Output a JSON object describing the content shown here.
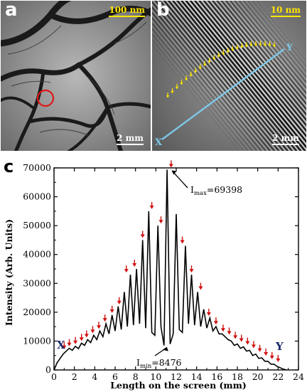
{
  "panels": {
    "a": {
      "letter": "a",
      "scale_top": "100 nm",
      "scale_bottom": "2 mm"
    },
    "b": {
      "letter": "b",
      "scale_top": "10 nm",
      "scale_bottom": "2 mm",
      "line_start": "X",
      "line_end": "Y"
    },
    "c": {
      "letter": "c"
    }
  },
  "colors": {
    "yellow_scale": "#ffe600",
    "marker_red": "#d01010",
    "line_blue": "#7ec8e8",
    "circle_red": "#e01818"
  },
  "chart_data": {
    "type": "line",
    "title": "",
    "xlabel": "Length on the screen (mm)",
    "ylabel": "Intensity (Arb. Units)",
    "xlim": [
      0,
      24
    ],
    "ylim": [
      0,
      70000
    ],
    "xticks": [
      0,
      2,
      4,
      6,
      8,
      10,
      12,
      14,
      16,
      18,
      20,
      22,
      24
    ],
    "yticks": [
      0,
      10000,
      20000,
      30000,
      40000,
      50000,
      60000,
      70000
    ],
    "series": [
      {
        "x": [
          0.0,
          0.3,
          0.6,
          0.9,
          1.2,
          1.5,
          1.8,
          2.1,
          2.4,
          2.7,
          3.0,
          3.3,
          3.6,
          3.9,
          4.2,
          4.5,
          4.8,
          5.1,
          5.4,
          5.7,
          6.0,
          6.3,
          6.6,
          6.9,
          7.2,
          7.5,
          7.8,
          8.1,
          8.4,
          8.7,
          9.0,
          9.3,
          9.6,
          9.9,
          10.2,
          10.5,
          10.8,
          11.1,
          11.4,
          11.7,
          12.0,
          12.3,
          12.6,
          12.9,
          13.2,
          13.5,
          13.8,
          14.1,
          14.4,
          14.7,
          15.0,
          15.3,
          15.6,
          15.9,
          16.2,
          16.5,
          16.8,
          17.1,
          17.4,
          17.7,
          18.0,
          18.3,
          18.6,
          18.9,
          19.2,
          19.5,
          19.8,
          20.1,
          20.4,
          20.7,
          21.0,
          21.3,
          21.6,
          21.9,
          22.2,
          22.5,
          22.8
        ],
        "y": [
          0,
          2500,
          4000,
          5500,
          6500,
          7500,
          6800,
          8200,
          7400,
          9300,
          8500,
          10500,
          9500,
          12000,
          10500,
          13500,
          11500,
          16000,
          12500,
          19000,
          13500,
          22000,
          14000,
          27000,
          15000,
          33000,
          15500,
          35000,
          16000,
          45000,
          14500,
          55000,
          13000,
          12000,
          50000,
          15000,
          8476,
          69398,
          9000,
          12500,
          54000,
          14000,
          13000,
          43000,
          16000,
          33000,
          15500,
          27000,
          15000,
          21000,
          14500,
          18000,
          13500,
          15000,
          12500,
          12500,
          11500,
          10500,
          10000,
          8500,
          9000,
          7500,
          8000,
          6500,
          6800,
          5000,
          5500,
          4000,
          4200,
          3000,
          3000,
          2000,
          2000,
          1200,
          800,
          300,
          0
        ]
      }
    ],
    "peak_markers_x": [
      1.0,
      1.5,
      2.1,
      2.7,
      3.2,
      3.8,
      4.4,
      5.0,
      5.7,
      6.4,
      7.1,
      7.9,
      8.7,
      9.6,
      10.5,
      11.5,
      12.6,
      13.5,
      14.4,
      15.2,
      15.9,
      16.6,
      17.2,
      17.8,
      18.4,
      19.0,
      19.6,
      20.2,
      20.8,
      21.4,
      22.0
    ],
    "annotations": {
      "imax_prefix": "I",
      "imax_sub": "max",
      "imax_value": "=69398",
      "imin_prefix": "I",
      "imin_sub": "min",
      "imin_value": "=8476",
      "label_x": "X",
      "label_y": "Y"
    }
  }
}
